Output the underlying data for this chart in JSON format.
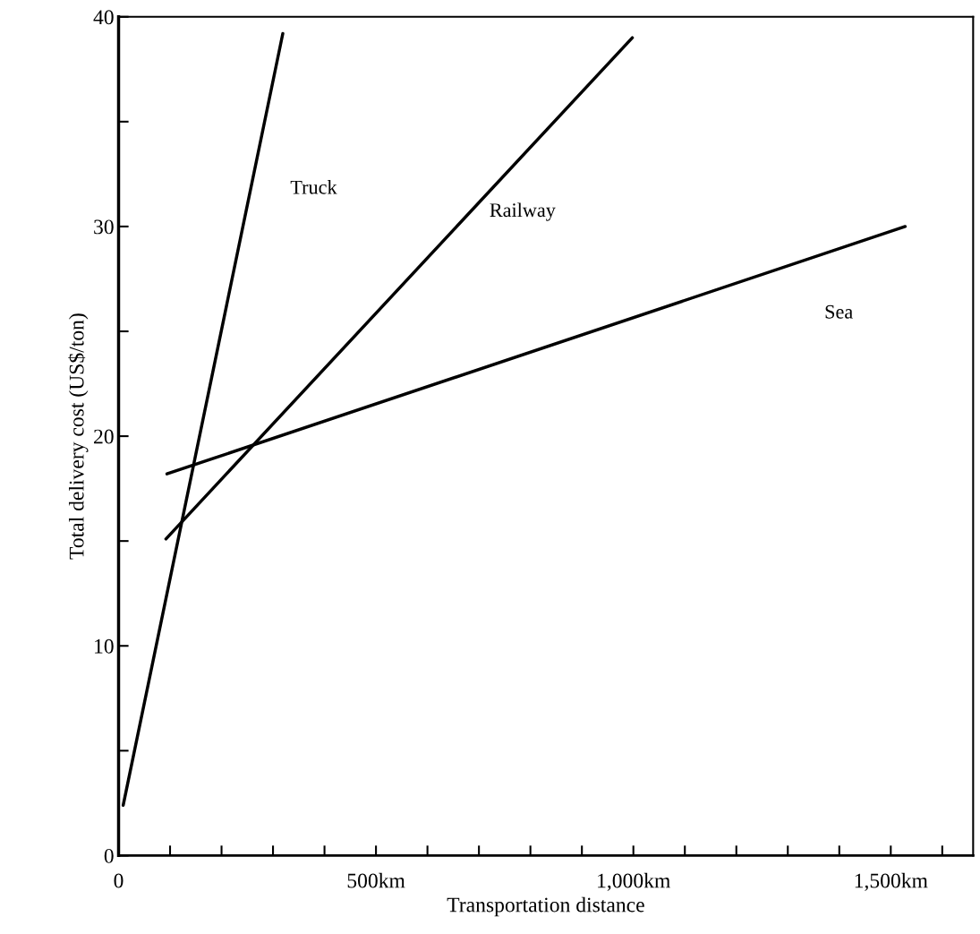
{
  "chart_data": {
    "type": "line",
    "xlabel": "Transportation distance",
    "ylabel": "Total delivery cost (US$/ton)",
    "series": [
      {
        "name": "Truck",
        "color": "#000000",
        "x": [
          9,
          319
        ],
        "values": [
          2.4,
          39.2
        ]
      },
      {
        "name": "Railway",
        "color": "#000000",
        "x": [
          92,
          998
        ],
        "values": [
          15.1,
          39.0
        ]
      },
      {
        "name": "Sea",
        "color": "#000000",
        "x": [
          94,
          1528
        ],
        "values": [
          18.2,
          30.0
        ]
      }
    ],
    "xlim": [
      0,
      1660
    ],
    "ylim": [
      0,
      40
    ],
    "xticks": [
      {
        "value": 0,
        "label": "0"
      },
      {
        "value": 100,
        "label": null
      },
      {
        "value": 200,
        "label": null
      },
      {
        "value": 300,
        "label": null
      },
      {
        "value": 400,
        "label": null
      },
      {
        "value": 500,
        "label": "500km"
      },
      {
        "value": 600,
        "label": null
      },
      {
        "value": 700,
        "label": null
      },
      {
        "value": 800,
        "label": null
      },
      {
        "value": 900,
        "label": null
      },
      {
        "value": 1000,
        "label": "1,000km"
      },
      {
        "value": 1100,
        "label": null
      },
      {
        "value": 1200,
        "label": null
      },
      {
        "value": 1300,
        "label": null
      },
      {
        "value": 1400,
        "label": null
      },
      {
        "value": 1500,
        "label": "1,500km"
      },
      {
        "value": 1600,
        "label": null
      }
    ],
    "yticks": [
      0,
      {
        "value": 5,
        "label": null
      },
      10,
      {
        "value": 15,
        "label": null
      },
      20,
      {
        "value": 25,
        "label": null
      },
      30,
      {
        "value": 35,
        "label": null
      },
      40
    ],
    "grid": false,
    "legend": false,
    "marker": "none",
    "line_style": "solid"
  }
}
